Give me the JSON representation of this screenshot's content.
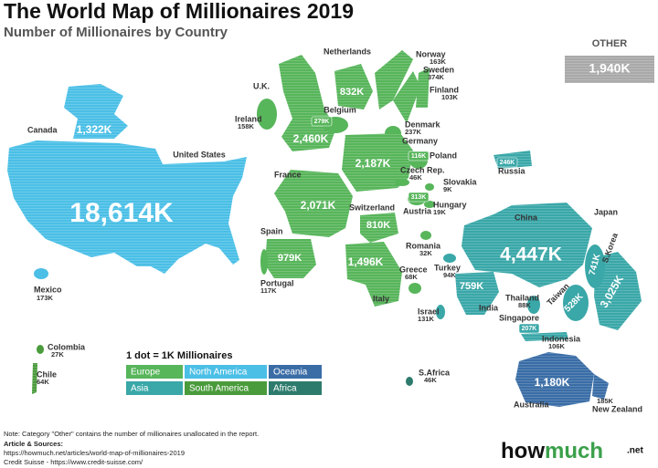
{
  "title": "The World Map of Millionaires 2019",
  "subtitle": "Number of Millionaires by Country",
  "countries": [
    {
      "name": "Canada",
      "value": "1,322K",
      "color": "#4bbfe6"
    },
    {
      "name": "United States",
      "value": "18,614K",
      "color": "#4bbfe6"
    },
    {
      "name": "Mexico",
      "value": "173K",
      "color": "#4bbfe6"
    },
    {
      "name": "Colombia",
      "value": "27K",
      "color": "#4a9b3c"
    },
    {
      "name": "Chile",
      "value": "64K",
      "color": "#4a9b3c"
    },
    {
      "name": "U.K.",
      "value": "2,460K",
      "color": "#57b55a"
    },
    {
      "name": "Ireland",
      "value": "158K",
      "color": "#57b55a"
    },
    {
      "name": "Netherlands",
      "value": "832K",
      "color": "#57b55a"
    },
    {
      "name": "Belgium",
      "value": "279K",
      "color": "#57b55a"
    },
    {
      "name": "Norway",
      "value": "163K",
      "color": "#57b55a"
    },
    {
      "name": "Sweden",
      "value": "374K",
      "color": "#57b55a"
    },
    {
      "name": "Finland",
      "value": "103K",
      "color": "#57b55a"
    },
    {
      "name": "Denmark",
      "value": "237K",
      "color": "#57b55a"
    },
    {
      "name": "Germany",
      "value": "2,187K",
      "color": "#57b55a"
    },
    {
      "name": "Poland",
      "value": "116K",
      "color": "#57b55a"
    },
    {
      "name": "Czech Rep.",
      "value": "46K",
      "color": "#57b55a"
    },
    {
      "name": "Slovakia",
      "value": "9K",
      "color": "#57b55a"
    },
    {
      "name": "Hungary",
      "value": "19K",
      "color": "#57b55a"
    },
    {
      "name": "Austria",
      "value": "313K",
      "color": "#57b55a"
    },
    {
      "name": "France",
      "value": "2,071K",
      "color": "#57b55a"
    },
    {
      "name": "Switzerland",
      "value": "810K",
      "color": "#57b55a"
    },
    {
      "name": "Spain",
      "value": "979K",
      "color": "#57b55a"
    },
    {
      "name": "Portugal",
      "value": "117K",
      "color": "#57b55a"
    },
    {
      "name": "Italy",
      "value": "1,496K",
      "color": "#57b55a"
    },
    {
      "name": "Romania",
      "value": "32K",
      "color": "#57b55a"
    },
    {
      "name": "Turkey",
      "value": "94K",
      "color": "#3aa7a8"
    },
    {
      "name": "Greece",
      "value": "68K",
      "color": "#57b55a"
    },
    {
      "name": "Israel",
      "value": "131K",
      "color": "#3aa7a8"
    },
    {
      "name": "Russia",
      "value": "246K",
      "color": "#3aa7a8"
    },
    {
      "name": "China",
      "value": "4,447K",
      "color": "#3aa7a8"
    },
    {
      "name": "Japan",
      "value": "3,025K",
      "color": "#3aa7a8"
    },
    {
      "name": "S.Korea",
      "value": "741K",
      "color": "#3aa7a8"
    },
    {
      "name": "Taiwan",
      "value": "528K",
      "color": "#3aa7a8"
    },
    {
      "name": "India",
      "value": "759K",
      "color": "#3aa7a8"
    },
    {
      "name": "Thailand",
      "value": "88K",
      "color": "#3aa7a8"
    },
    {
      "name": "Singapore",
      "value": "207K",
      "color": "#3aa7a8"
    },
    {
      "name": "Indonesia",
      "value": "106K",
      "color": "#3aa7a8"
    },
    {
      "name": "Australia",
      "value": "1,180K",
      "color": "#3a6da6"
    },
    {
      "name": "New Zealand",
      "value": "185K",
      "color": "#3a6da6"
    },
    {
      "name": "S.Africa",
      "value": "46K",
      "color": "#2d7b6c"
    }
  ],
  "other": {
    "name": "OTHER",
    "value": "1,940K",
    "color": "#a9a9a9"
  },
  "legend": {
    "title": "1 dot = 1K Millionaires",
    "items": [
      {
        "name": "Europe",
        "color": "#57b55a"
      },
      {
        "name": "North America",
        "color": "#4bbfe6"
      },
      {
        "name": "Oceania",
        "color": "#3a6da6"
      },
      {
        "name": "Asia",
        "color": "#3aa7a8"
      },
      {
        "name": "South America",
        "color": "#4a9b3c"
      },
      {
        "name": "Africa",
        "color": "#2d7b6c"
      }
    ]
  },
  "footer": {
    "note": "Note: Category \"Other\" contains the number of millionaires unallocated in the report.",
    "sources_title": "Article & Sources:",
    "sources": [
      "https://howmuch.net/articles/world-map-of-millionaires-2019",
      "Credit Suisse - https://www.credit-suisse.com/"
    ]
  },
  "logo": {
    "how": "how",
    "much": "much",
    "tld": ".net"
  }
}
